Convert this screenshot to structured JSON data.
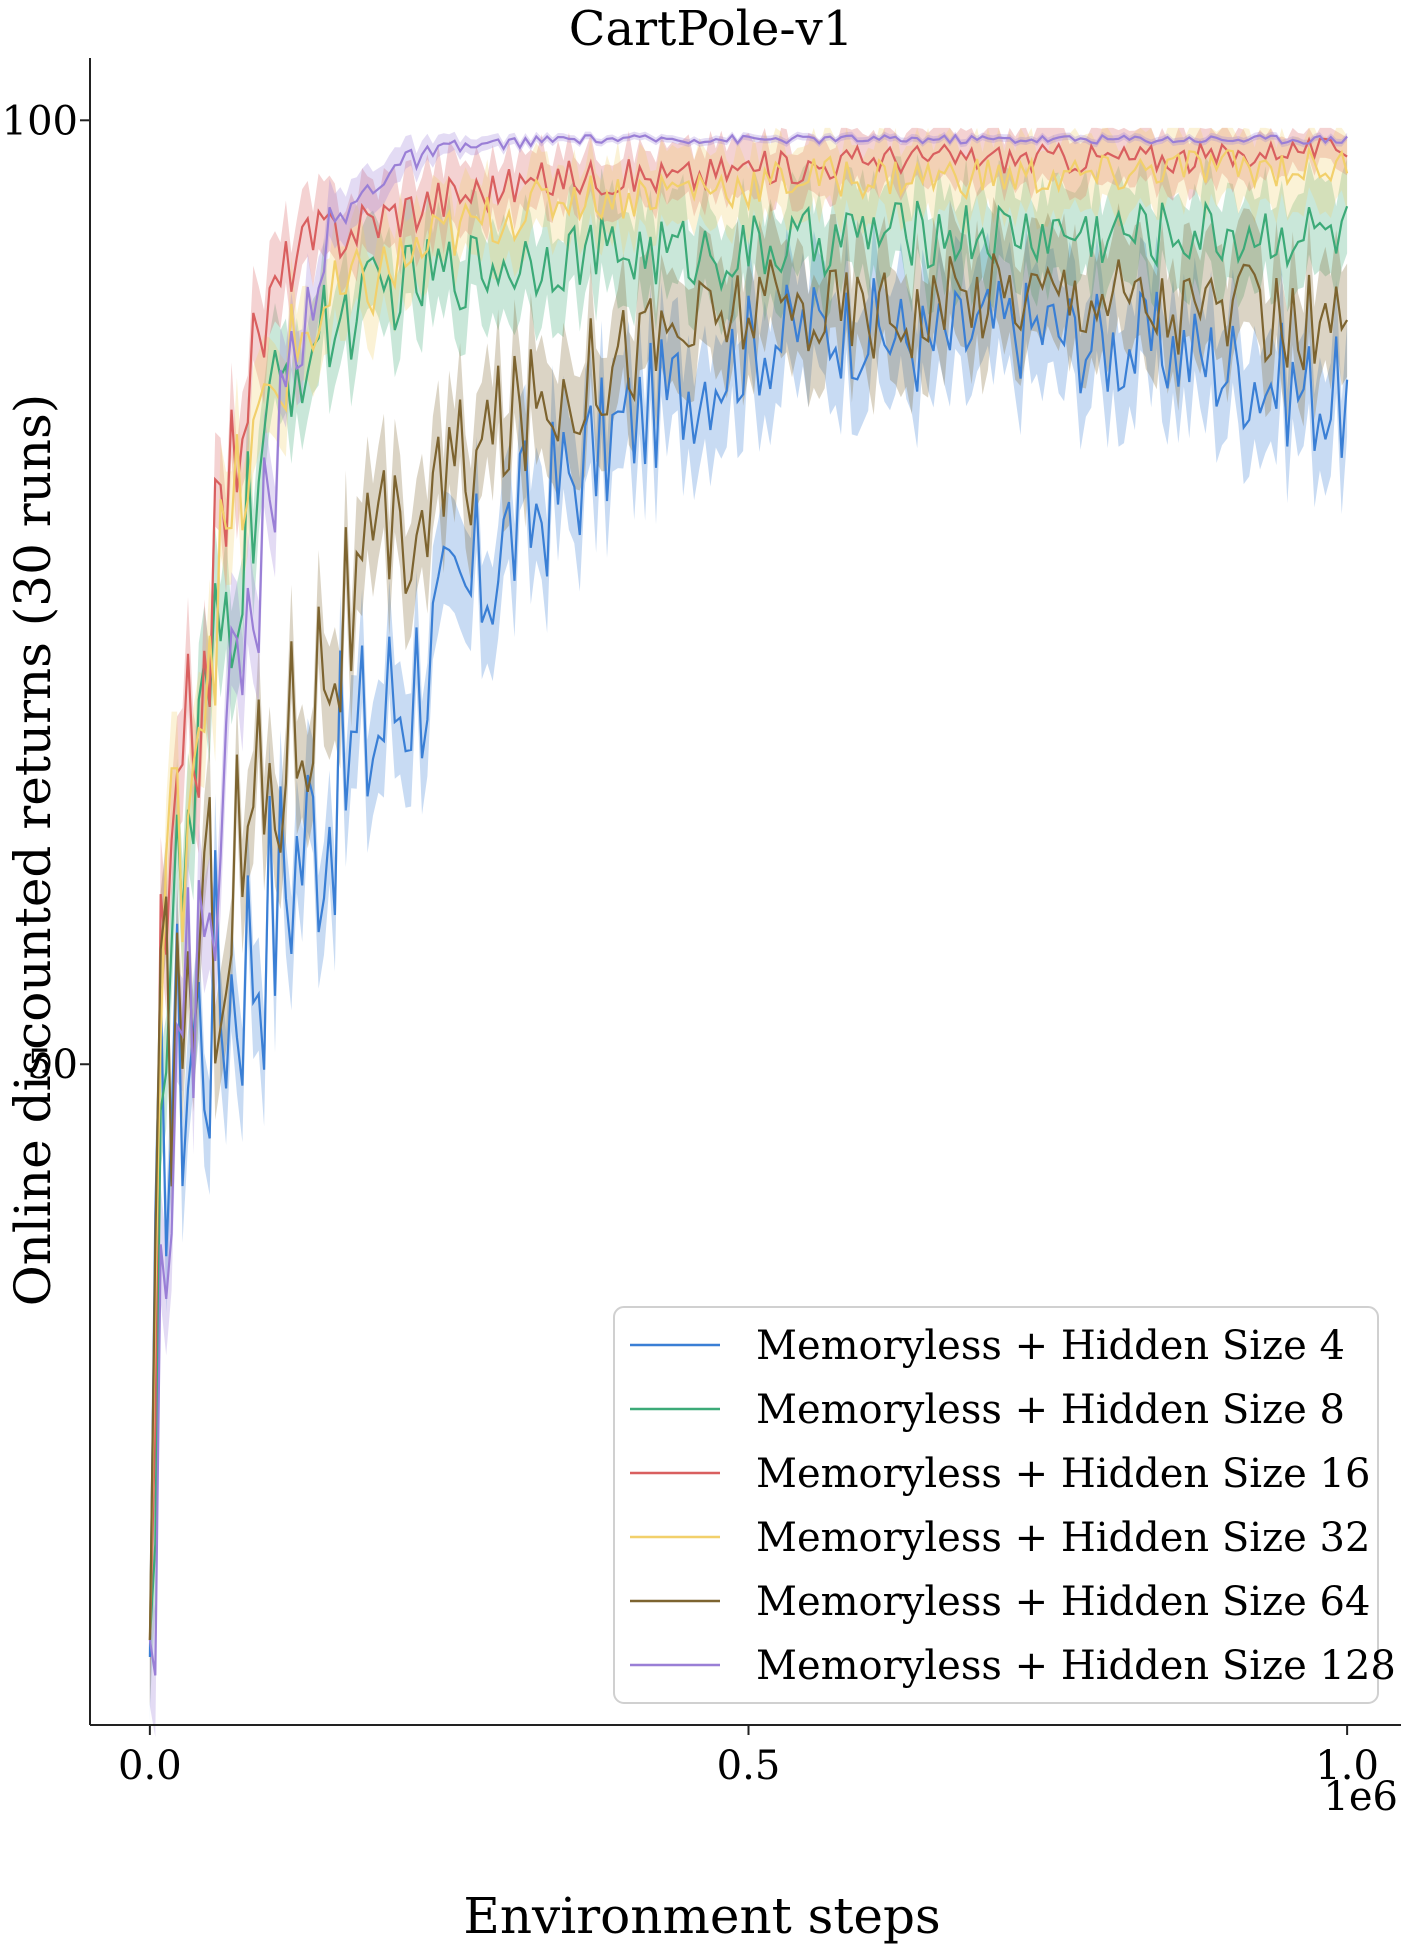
{
  "chart_data": {
    "type": "line",
    "title": "CartPole-v1",
    "xlabel": "Environment steps",
    "ylabel": "Online discounted returns (30 runs)",
    "x_offset_label": "1e6",
    "xlim": [
      -0.05,
      1.045
    ],
    "ylim": [
      15,
      103.3
    ],
    "x_ticks": [
      0.0,
      0.5,
      1.0
    ],
    "x_tick_labels": [
      "0.0",
      "0.5",
      "1.0"
    ],
    "y_ticks": [
      50,
      100
    ],
    "y_tick_labels": [
      "50",
      "100"
    ],
    "grid": false,
    "legend_position": "lower-right",
    "x": [
      0.0,
      0.01,
      0.02,
      0.03,
      0.04,
      0.05,
      0.06,
      0.08,
      0.1,
      0.12,
      0.15,
      0.2,
      0.25,
      0.3,
      0.35,
      0.4,
      0.45,
      0.5,
      0.55,
      0.6,
      0.65,
      0.7,
      0.75,
      0.8,
      0.85,
      0.9,
      0.95,
      1.0
    ],
    "series": [
      {
        "name": "Memoryless + Hidden Size 4",
        "color": "#3a7fd5",
        "values": [
          18.6,
          48,
          49,
          51,
          52,
          53,
          54,
          56,
          58,
          61,
          64,
          69,
          73,
          78,
          81,
          84,
          86,
          88,
          89,
          89,
          88,
          89,
          89,
          88,
          88,
          87,
          86,
          85
        ],
        "band": [
          3.5,
          3,
          3,
          3,
          3,
          3,
          3,
          3,
          3,
          3,
          3,
          3,
          3,
          3,
          3,
          3,
          3,
          3,
          3,
          3,
          3,
          3,
          3,
          3,
          3,
          3,
          3,
          3
        ]
      },
      {
        "name": "Memoryless + Hidden Size 8",
        "color": "#3caa78",
        "values": [
          19.5,
          52,
          56,
          60,
          64,
          68,
          72,
          78,
          84,
          87,
          89,
          91,
          92,
          92.5,
          93,
          93,
          93,
          93,
          93.5,
          94,
          94,
          94,
          94,
          94,
          94,
          94,
          94,
          94
        ],
        "band": [
          3.5,
          3,
          3,
          3,
          3,
          3,
          3,
          3,
          2.5,
          2.5,
          2.5,
          2.5,
          2.5,
          2.5,
          2.5,
          2.5,
          2.5,
          2.5,
          2.5,
          2.5,
          2.5,
          2.5,
          2.5,
          2.5,
          2.5,
          2.5,
          2.5,
          2.5
        ]
      },
      {
        "name": "Memoryless + Hidden Size 16",
        "color": "#d95f5f",
        "values": [
          19.5,
          54,
          59,
          64,
          69,
          74,
          79,
          86,
          90,
          93,
          94,
          95,
          96,
          96.5,
          97,
          97,
          97,
          97.5,
          97.5,
          98,
          98,
          98,
          98,
          98,
          98,
          98,
          98.5,
          98.5
        ],
        "band": [
          3.5,
          3,
          3,
          3,
          3,
          2.5,
          2.5,
          2.5,
          2.5,
          2,
          2,
          2,
          2,
          1.5,
          1.5,
          1.5,
          1.5,
          1.5,
          1.5,
          1.5,
          1.5,
          1.5,
          1.5,
          1.5,
          1.5,
          1.5,
          1,
          1
        ]
      },
      {
        "name": "Memoryless + Hidden Size 32",
        "color": "#f2d06b",
        "values": [
          19.5,
          56,
          60,
          65,
          70,
          73,
          76,
          81,
          85,
          88,
          90,
          92,
          94,
          95,
          96,
          96,
          96.5,
          96.5,
          97,
          97,
          97,
          97,
          97,
          97,
          97.5,
          97.5,
          97.5,
          97.5
        ],
        "band": [
          3.5,
          3,
          3,
          3,
          3,
          3,
          3,
          3,
          2.5,
          2.5,
          2.5,
          2.5,
          2,
          2,
          2,
          2,
          2,
          2,
          2,
          2,
          2,
          2,
          2,
          2,
          2,
          2,
          2,
          2
        ]
      },
      {
        "name": "Memoryless + Hidden Size 64",
        "color": "#7d6430",
        "values": [
          19.5,
          50,
          52,
          54,
          55,
          57,
          59,
          62,
          65,
          68,
          72,
          77,
          81,
          84,
          86,
          88,
          89,
          90,
          90,
          90,
          90,
          91,
          91,
          91,
          90,
          90,
          89,
          89
        ],
        "band": [
          3.5,
          3,
          3,
          3,
          3,
          3,
          3,
          3,
          3,
          3,
          3,
          3,
          3,
          3,
          3,
          3,
          3,
          3,
          3,
          3,
          3,
          3,
          3,
          3,
          3,
          3,
          3,
          3
        ]
      },
      {
        "name": "Memoryless + Hidden Size 128",
        "color": "#9a7fd6",
        "values": [
          19.5,
          44,
          47,
          51,
          55,
          60,
          65,
          72,
          80,
          88,
          94,
          97.5,
          98.5,
          98.8,
          99,
          99,
          99,
          99,
          99,
          99,
          99,
          99,
          99,
          99,
          99,
          99,
          99,
          99
        ],
        "band": [
          3.5,
          3,
          3,
          3,
          3,
          3,
          3,
          3,
          2.5,
          2,
          1.5,
          1,
          0.5,
          0.3,
          0.2,
          0.2,
          0.2,
          0.2,
          0.2,
          0.2,
          0.2,
          0.2,
          0.2,
          0.2,
          0.2,
          0.2,
          0.2,
          0.2
        ]
      }
    ]
  }
}
